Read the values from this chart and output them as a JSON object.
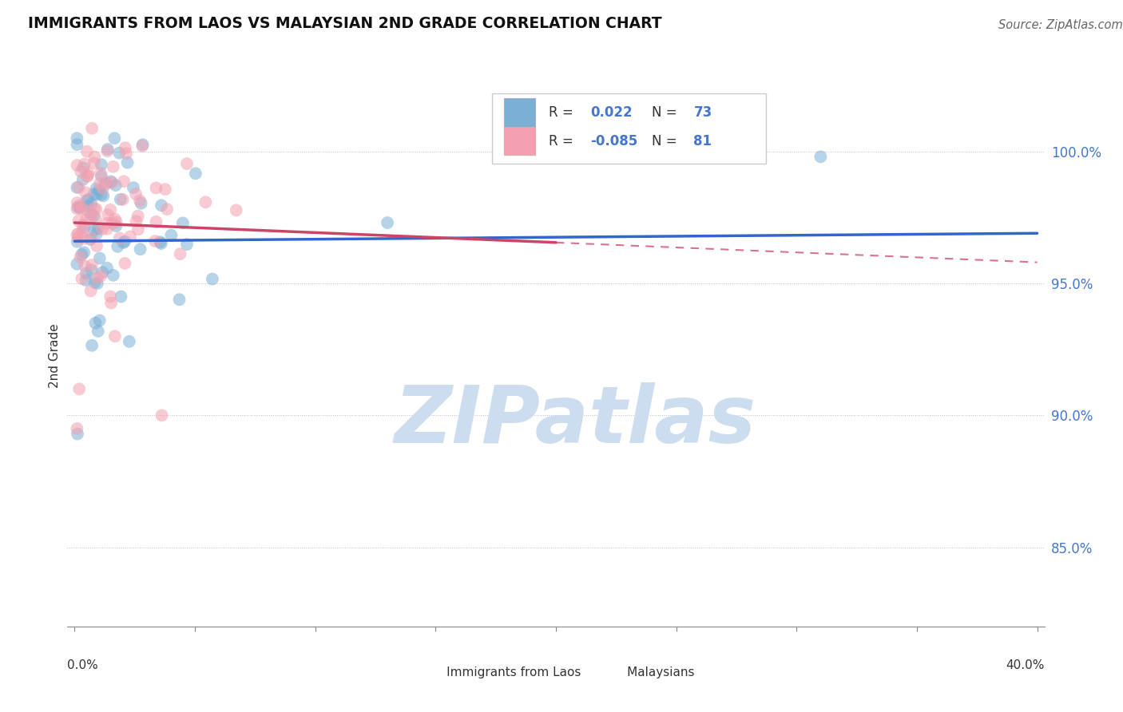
{
  "title": "IMMIGRANTS FROM LAOS VS MALAYSIAN 2ND GRADE CORRELATION CHART",
  "source": "Source: ZipAtlas.com",
  "ylabel": "2nd Grade",
  "ytick_labels": [
    "100.0%",
    "95.0%",
    "90.0%",
    "85.0%"
  ],
  "ytick_values": [
    1.0,
    0.95,
    0.9,
    0.85
  ],
  "xlim": [
    0.0,
    0.4
  ],
  "ylim": [
    0.82,
    1.025
  ],
  "legend_r_blue": "0.022",
  "legend_n_blue": "73",
  "legend_r_pink": "-0.085",
  "legend_n_pink": "81",
  "blue_color": "#7bafd4",
  "pink_color": "#f4a0b0",
  "trend_blue_color": "#3366cc",
  "trend_pink_color": "#cc4466",
  "watermark_text": "ZIPatlas",
  "watermark_color": "#ccddf0",
  "grid_color": "#bbbbcc",
  "axis_color": "#888888",
  "label_color": "#4477cc",
  "text_color": "#333333",
  "source_color": "#666666",
  "title_color": "#111111"
}
